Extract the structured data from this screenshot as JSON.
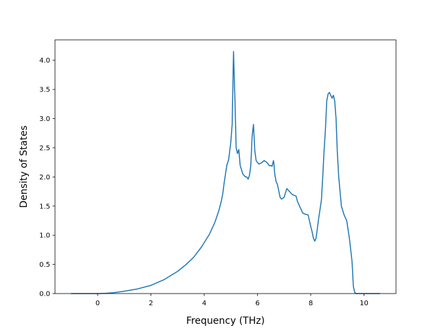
{
  "chart_data": {
    "type": "line",
    "title": "",
    "xlabel": "Frequency (THz)",
    "ylabel": "Density of States",
    "xlim": [
      -1.6,
      11.2
    ],
    "ylim": [
      0.0,
      4.35
    ],
    "xticks": [
      0,
      2,
      4,
      6,
      8,
      10
    ],
    "xtick_labels": [
      "0",
      "2",
      "4",
      "6",
      "8",
      "10"
    ],
    "yticks": [
      0.0,
      0.5,
      1.0,
      1.5,
      2.0,
      2.5,
      3.0,
      3.5,
      4.0
    ],
    "ytick_labels": [
      "0.0",
      "0.5",
      "1.0",
      "1.5",
      "2.0",
      "2.5",
      "3.0",
      "3.5",
      "4.0"
    ],
    "grid": false,
    "series": [
      {
        "color": "#1f77b4",
        "x": [
          -1.0,
          -0.5,
          0.0,
          0.3,
          0.6,
          1.0,
          1.5,
          2.0,
          2.5,
          3.0,
          3.3,
          3.6,
          3.9,
          4.2,
          4.4,
          4.55,
          4.65,
          4.7,
          4.75,
          4.85,
          4.92,
          4.96,
          5.0,
          5.05,
          5.1,
          5.15,
          5.2,
          5.25,
          5.3,
          5.35,
          5.45,
          5.55,
          5.6,
          5.65,
          5.7,
          5.75,
          5.8,
          5.85,
          5.9,
          5.95,
          6.05,
          6.15,
          6.25,
          6.35,
          6.45,
          6.5,
          6.55,
          6.6,
          6.62,
          6.65,
          6.7,
          6.75,
          6.85,
          6.9,
          7.0,
          7.1,
          7.2,
          7.3,
          7.45,
          7.5,
          7.6,
          7.7,
          7.8,
          7.9,
          8.0,
          8.05,
          8.1,
          8.15,
          8.2,
          8.3,
          8.4,
          8.45,
          8.5,
          8.55,
          8.6,
          8.65,
          8.7,
          8.8,
          8.85,
          8.9,
          8.95,
          9.0,
          9.05,
          9.15,
          9.25,
          9.35,
          9.45,
          9.55,
          9.6,
          9.65,
          9.7,
          9.75,
          10.0,
          10.3,
          10.6
        ],
        "y": [
          0.0,
          0.0,
          0.0,
          0.005,
          0.015,
          0.04,
          0.08,
          0.14,
          0.24,
          0.38,
          0.49,
          0.62,
          0.8,
          1.02,
          1.22,
          1.42,
          1.6,
          1.72,
          1.9,
          2.2,
          2.3,
          2.45,
          2.6,
          2.9,
          4.15,
          3.4,
          2.5,
          2.4,
          2.47,
          2.2,
          2.05,
          2.0,
          2.0,
          1.96,
          2.03,
          2.2,
          2.7,
          2.9,
          2.45,
          2.28,
          2.22,
          2.24,
          2.28,
          2.25,
          2.19,
          2.2,
          2.18,
          2.28,
          2.22,
          2.04,
          1.92,
          1.87,
          1.65,
          1.62,
          1.65,
          1.8,
          1.75,
          1.7,
          1.67,
          1.58,
          1.48,
          1.38,
          1.36,
          1.35,
          1.15,
          1.06,
          0.95,
          0.9,
          0.95,
          1.3,
          1.6,
          2.0,
          2.45,
          2.8,
          3.3,
          3.42,
          3.45,
          3.35,
          3.4,
          3.3,
          3.0,
          2.4,
          2.0,
          1.5,
          1.35,
          1.25,
          0.95,
          0.55,
          0.12,
          0.02,
          0.0,
          0.0,
          0.0,
          0.0,
          0.0
        ]
      }
    ]
  }
}
